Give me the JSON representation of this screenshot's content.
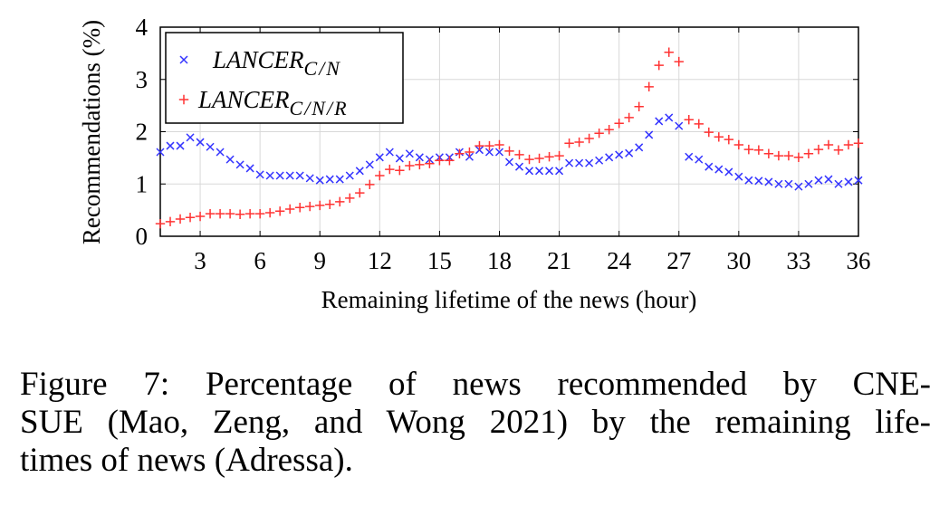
{
  "chart_data": {
    "type": "scatter",
    "xlabel": "Remaining lifetime of the news (hour)",
    "ylabel": "Recommendations (%)",
    "x": [
      1,
      1.5,
      2,
      2.5,
      3,
      3.5,
      4,
      4.5,
      5,
      5.5,
      6,
      6.5,
      7,
      7.5,
      8,
      8.5,
      9,
      9.5,
      10,
      10.5,
      11,
      11.5,
      12,
      12.5,
      13,
      13.5,
      14,
      14.5,
      15,
      15.5,
      16,
      16.5,
      17,
      17.5,
      18,
      18.5,
      19,
      19.5,
      20,
      20.5,
      21,
      21.5,
      22,
      22.5,
      23,
      23.5,
      24,
      24.5,
      25,
      25.5,
      26,
      26.5,
      27,
      27.5,
      28,
      28.5,
      29,
      29.5,
      30,
      30.5,
      31,
      31.5,
      32,
      32.5,
      33,
      33.5,
      34,
      34.5,
      35,
      35.5,
      36
    ],
    "series": [
      {
        "name": "LANCER",
        "subscript": "C/N",
        "color": "#3333ff",
        "marker": "x",
        "values": [
          1.61,
          1.73,
          1.73,
          1.89,
          1.8,
          1.71,
          1.61,
          1.47,
          1.37,
          1.3,
          1.18,
          1.16,
          1.16,
          1.16,
          1.16,
          1.11,
          1.07,
          1.09,
          1.09,
          1.16,
          1.25,
          1.37,
          1.51,
          1.61,
          1.49,
          1.58,
          1.51,
          1.47,
          1.51,
          1.51,
          1.61,
          1.52,
          1.65,
          1.61,
          1.61,
          1.42,
          1.33,
          1.25,
          1.25,
          1.25,
          1.25,
          1.4,
          1.4,
          1.4,
          1.45,
          1.51,
          1.56,
          1.59,
          1.7,
          1.94,
          2.2,
          2.27,
          2.11,
          1.52,
          1.47,
          1.33,
          1.28,
          1.23,
          1.14,
          1.07,
          1.06,
          1.04,
          1.0,
          1.0,
          0.95,
          1.0,
          1.07,
          1.09,
          1.0,
          1.04,
          1.07
        ]
      },
      {
        "name": "LANCER",
        "subscript": "C/N/R",
        "color": "#ff3333",
        "marker": "+",
        "values": [
          0.24,
          0.28,
          0.33,
          0.36,
          0.38,
          0.43,
          0.43,
          0.43,
          0.42,
          0.43,
          0.43,
          0.45,
          0.48,
          0.52,
          0.55,
          0.57,
          0.59,
          0.61,
          0.66,
          0.73,
          0.83,
          0.99,
          1.16,
          1.28,
          1.26,
          1.35,
          1.37,
          1.39,
          1.45,
          1.45,
          1.58,
          1.61,
          1.73,
          1.73,
          1.75,
          1.63,
          1.56,
          1.47,
          1.49,
          1.52,
          1.54,
          1.78,
          1.8,
          1.87,
          1.97,
          2.04,
          2.16,
          2.27,
          2.48,
          2.86,
          3.27,
          3.52,
          3.34,
          2.23,
          2.15,
          1.99,
          1.9,
          1.85,
          1.75,
          1.66,
          1.65,
          1.58,
          1.54,
          1.54,
          1.51,
          1.58,
          1.66,
          1.75,
          1.65,
          1.75,
          1.78
        ]
      }
    ],
    "xlim": [
      1,
      36
    ],
    "xticks": [
      3,
      6,
      9,
      12,
      15,
      18,
      21,
      24,
      27,
      30,
      33,
      36
    ],
    "ylim": [
      0,
      4
    ],
    "yticks": [
      0,
      1,
      2,
      3,
      4
    ],
    "grid": true,
    "legend": "upper left"
  },
  "caption": {
    "lines": [
      "Figure 7: Percentage of news recommended by CNE-",
      "SUE (Mao, Zeng, and Wong 2021) by the remaining life-",
      "times of news (Adressa)."
    ]
  }
}
